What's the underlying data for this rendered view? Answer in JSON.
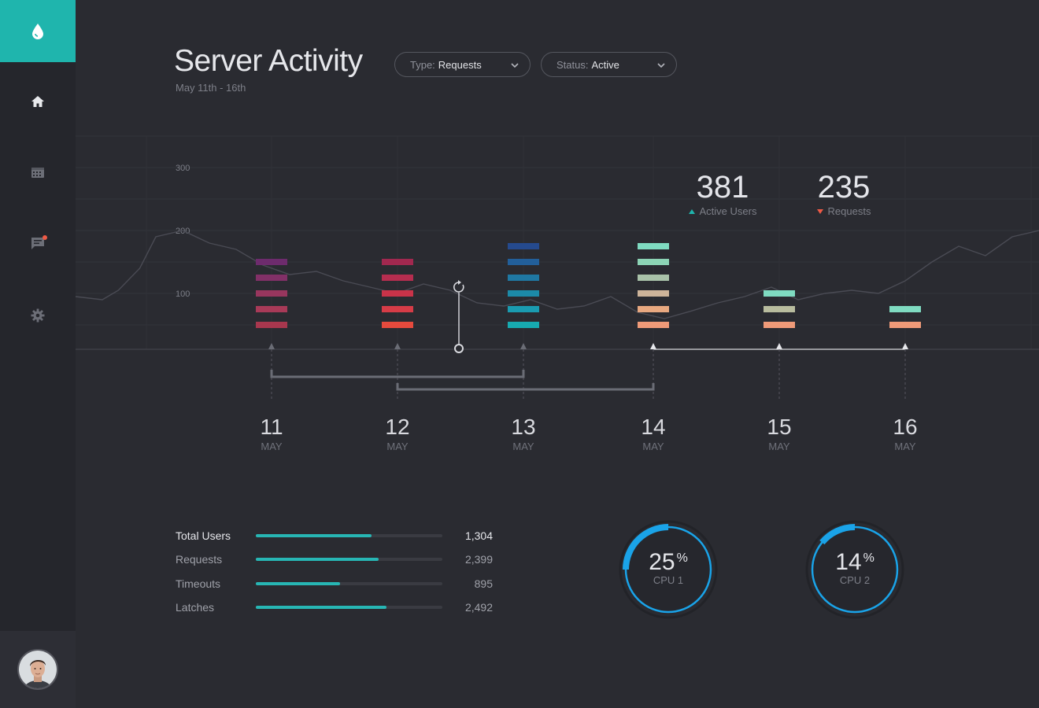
{
  "app": {
    "brand_icon": "water-drop-icon",
    "accent": "#1fb5ad"
  },
  "sidebar": {
    "items": [
      {
        "icon": "home-icon",
        "active": true
      },
      {
        "icon": "calendar-icon",
        "active": false
      },
      {
        "icon": "chat-icon",
        "active": false,
        "notification": true
      },
      {
        "icon": "gear-icon",
        "active": false
      }
    ]
  },
  "header": {
    "title": "Server Activity",
    "subtitle": "May 11th - 16th",
    "filters": [
      {
        "label": "Type:",
        "value": "Requests"
      },
      {
        "label": "Status:",
        "value": "Active"
      }
    ]
  },
  "stats": [
    {
      "value": "381",
      "label": "Active Users",
      "trend": "up",
      "color": "#1fb5ad"
    },
    {
      "value": "235",
      "label": "Requests",
      "trend": "down",
      "color": "#ef5a46"
    }
  ],
  "chart_data": {
    "type": "bar",
    "y_ticks": [
      "300",
      "200",
      "100"
    ],
    "ylim": [
      0,
      300
    ],
    "days": [
      {
        "day": "11",
        "month": "MAY",
        "segments": 5,
        "colors": [
          "#a8374e",
          "#a83a58",
          "#98365e",
          "#823067",
          "#6d2b6d"
        ]
      },
      {
        "day": "12",
        "month": "MAY",
        "segments": 5,
        "colors": [
          "#e64a3d",
          "#d63c47",
          "#c93349",
          "#b52d4f",
          "#a1284f"
        ]
      },
      {
        "day": "13",
        "month": "MAY",
        "segments": 6,
        "colors": [
          "#17aab0",
          "#1a9bb0",
          "#1c8aa8",
          "#1f78a3",
          "#225f9a",
          "#254a8e"
        ]
      },
      {
        "day": "14",
        "month": "MAY",
        "segments": 6,
        "colors": [
          "#ef9a78",
          "#e8a880",
          "#cdb49a",
          "#a9c2a9",
          "#8cd4b5",
          "#7fdbc1"
        ]
      },
      {
        "day": "15",
        "month": "MAY",
        "segments": 3,
        "colors": [
          "#ef9a78",
          "#b8bc9e",
          "#7fdbc1"
        ]
      },
      {
        "day": "16",
        "month": "MAY",
        "segments": 2,
        "colors": [
          "#ef9a78",
          "#7fdbc1"
        ]
      }
    ],
    "trend_line": [
      [
        0,
        95
      ],
      [
        0.25,
        90
      ],
      [
        0.4,
        105
      ],
      [
        0.6,
        140
      ],
      [
        0.75,
        190
      ],
      [
        1,
        200
      ],
      [
        1.25,
        180
      ],
      [
        1.5,
        170
      ],
      [
        1.75,
        145
      ],
      [
        2,
        130
      ],
      [
        2.25,
        135
      ],
      [
        2.5,
        120
      ],
      [
        2.75,
        110
      ],
      [
        3,
        100
      ],
      [
        3.25,
        115
      ],
      [
        3.5,
        105
      ],
      [
        3.75,
        85
      ],
      [
        4,
        80
      ],
      [
        4.25,
        90
      ],
      [
        4.5,
        75
      ],
      [
        4.75,
        80
      ],
      [
        5,
        95
      ],
      [
        5.25,
        70
      ],
      [
        5.5,
        60
      ],
      [
        5.75,
        72
      ],
      [
        6,
        85
      ],
      [
        6.25,
        95
      ],
      [
        6.5,
        110
      ],
      [
        6.75,
        90
      ],
      [
        7,
        100
      ],
      [
        7.25,
        105
      ],
      [
        7.5,
        100
      ],
      [
        7.75,
        120
      ],
      [
        8,
        150
      ],
      [
        8.25,
        175
      ],
      [
        8.5,
        160
      ],
      [
        8.75,
        190
      ],
      [
        9,
        200
      ]
    ],
    "grid": true
  },
  "metrics": [
    {
      "label": "Total Users",
      "value": "1,304",
      "fill": 0.62,
      "active": true
    },
    {
      "label": "Requests",
      "value": "2,399",
      "fill": 0.66,
      "active": false
    },
    {
      "label": "Timeouts",
      "value": "895",
      "fill": 0.45,
      "active": false
    },
    {
      "label": "Latches",
      "value": "2,492",
      "fill": 0.7,
      "active": false
    }
  ],
  "gauges": [
    {
      "value": "25",
      "unit": "%",
      "label": "CPU 1",
      "fraction": 0.25,
      "color": "#1aa3e8"
    },
    {
      "value": "14",
      "unit": "%",
      "label": "CPU 2",
      "fraction": 0.14,
      "color": "#1aa3e8"
    }
  ]
}
